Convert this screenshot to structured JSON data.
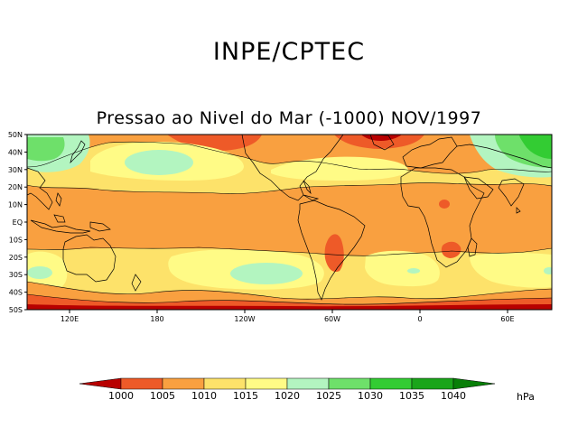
{
  "header": {
    "agency": "INPE/CPTEC",
    "subtitle": "Pressao ao Nivel do Mar (-1000) NOV/1997"
  },
  "map": {
    "lat_labels": [
      "50N",
      "40N",
      "30N",
      "20N",
      "10N",
      "EQ",
      "10S",
      "20S",
      "30S",
      "40S",
      "50S"
    ],
    "lon_labels": [
      "120E",
      "180",
      "120W",
      "60W",
      "0",
      "60E"
    ],
    "palette": {
      "below_1000": "#b80000",
      "1000_1005": "#ee5a28",
      "1005_1010": "#f9a040",
      "1010_1015": "#fde26a",
      "1015_1020": "#fffb86",
      "1020_1025": "#b3f5c0",
      "1025_1030": "#6ee06a",
      "1030_1035": "#33cc33",
      "1035_1040": "#1aa51a",
      "above_1040": "#087f08"
    }
  },
  "legend": {
    "labels": [
      "1000",
      "1005",
      "1010",
      "1015",
      "1020",
      "1025",
      "1030",
      "1035",
      "1040"
    ],
    "unit": "hPa"
  }
}
